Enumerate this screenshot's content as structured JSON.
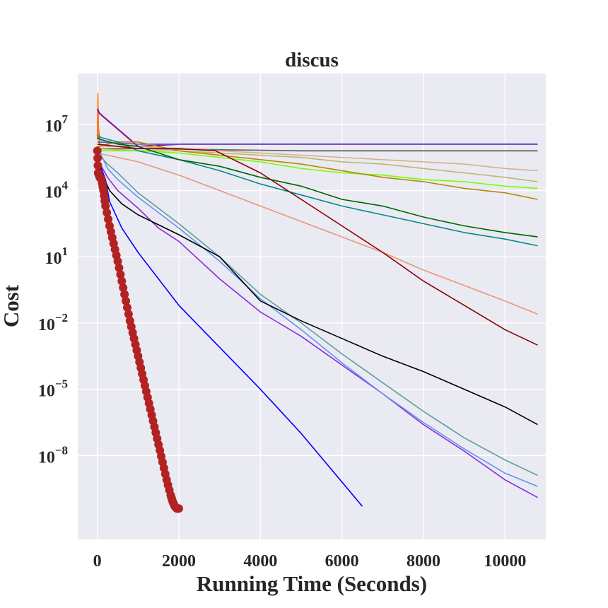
{
  "chart_data": {
    "type": "line",
    "title": "discus",
    "xlabel": "Running Time (Seconds)",
    "ylabel": "Cost",
    "xlim": [
      -480,
      11000
    ],
    "ylim_log10": [
      -11.8,
      9.3
    ],
    "y_scale": "log",
    "grid": true,
    "x_ticks": [
      {
        "value": 0,
        "label": "0"
      },
      {
        "value": 2000,
        "label": "2000"
      },
      {
        "value": 4000,
        "label": "4000"
      },
      {
        "value": 6000,
        "label": "6000"
      },
      {
        "value": 8000,
        "label": "8000"
      },
      {
        "value": 10000,
        "label": "10000"
      }
    ],
    "y_ticks": [
      {
        "exp": 7,
        "base": "10",
        "sup": "7"
      },
      {
        "exp": 4,
        "base": "10",
        "sup": "4"
      },
      {
        "exp": 1,
        "base": "10",
        "sup": "1"
      },
      {
        "exp": -2,
        "base": "10",
        "sup": "−2"
      },
      {
        "exp": -5,
        "base": "10",
        "sup": "−5"
      },
      {
        "exp": -8,
        "base": "10",
        "sup": "−8"
      }
    ],
    "series": [
      {
        "name": "dark-red-fast",
        "color": "#b22222",
        "width": 1.5,
        "markers": true,
        "x": [
          0,
          20,
          60,
          100,
          150,
          200,
          300,
          400,
          500,
          600,
          700,
          800,
          900,
          1000,
          1100,
          1200,
          1300,
          1400,
          1500,
          1600,
          1700,
          1800,
          1850,
          1900,
          1950,
          2000
        ],
        "y_log10": [
          5.8,
          4.8,
          4.6,
          4.5,
          4.0,
          3.3,
          2.4,
          1.6,
          0.8,
          -0.1,
          -1.0,
          -1.9,
          -2.7,
          -3.5,
          -4.3,
          -5.1,
          -5.9,
          -6.7,
          -7.5,
          -8.3,
          -9.1,
          -9.8,
          -10.1,
          -10.3,
          -10.4,
          -10.4
        ]
      },
      {
        "name": "blue",
        "color": "#0000ff",
        "width": 1.6,
        "markers": false,
        "x": [
          0,
          100,
          200,
          300,
          600,
          1000,
          2000,
          3000,
          4000,
          5000,
          6000,
          6500
        ],
        "y_log10": [
          5.4,
          5.0,
          4.5,
          3.5,
          2.3,
          1.2,
          -1.2,
          -3.1,
          -5.0,
          -7.0,
          -9.2,
          -10.3
        ]
      },
      {
        "name": "black",
        "color": "#000000",
        "width": 1.6,
        "markers": false,
        "x": [
          0,
          100,
          200,
          300,
          600,
          1000,
          2000,
          3000,
          4000,
          5000,
          6000,
          7000,
          8000,
          9000,
          10000,
          10800
        ],
        "y_log10": [
          5.3,
          4.9,
          4.4,
          4.0,
          3.4,
          2.9,
          2.0,
          1.0,
          -1.0,
          -1.9,
          -2.7,
          -3.5,
          -4.2,
          -5.0,
          -5.8,
          -6.6
        ]
      },
      {
        "name": "cadet-blue",
        "color": "#5f9ea0",
        "width": 1.6,
        "markers": false,
        "x": [
          0,
          100,
          250,
          500,
          1000,
          2000,
          3000,
          4000,
          5000,
          6000,
          7000,
          8000,
          9000,
          10000,
          10800
        ],
        "y_log10": [
          5.7,
          5.5,
          5.2,
          4.8,
          3.9,
          2.5,
          1.0,
          -0.7,
          -2.0,
          -3.4,
          -4.7,
          -6.0,
          -7.2,
          -8.2,
          -8.9
        ]
      },
      {
        "name": "cornflower-blue",
        "color": "#6495ed",
        "width": 1.6,
        "markers": false,
        "x": [
          0,
          100,
          250,
          500,
          1000,
          2000,
          3000,
          4000,
          5000,
          6000,
          7000,
          8000,
          9000,
          10000,
          10800
        ],
        "y_log10": [
          5.8,
          5.6,
          5.0,
          4.5,
          3.7,
          2.3,
          0.8,
          -0.9,
          -2.3,
          -3.8,
          -5.2,
          -6.5,
          -7.7,
          -8.8,
          -9.4
        ]
      },
      {
        "name": "blue-violet",
        "color": "#8a2be2",
        "width": 1.6,
        "markers": false,
        "x": [
          0,
          100,
          250,
          500,
          1000,
          1500,
          2000,
          3000,
          4000,
          5000,
          6000,
          7000,
          8000,
          9000,
          10000,
          10800
        ],
        "y_log10": [
          5.4,
          5.1,
          4.6,
          4.0,
          3.2,
          2.3,
          1.7,
          0.0,
          -1.5,
          -2.6,
          -3.9,
          -5.2,
          -6.6,
          -7.8,
          -9.1,
          -9.9
        ]
      },
      {
        "name": "dark-red",
        "color": "#8b0000",
        "width": 1.6,
        "markers": false,
        "x": [
          0,
          500,
          1000,
          2000,
          2900,
          4000,
          5000,
          6000,
          7000,
          8000,
          9000,
          10000,
          10800
        ],
        "y_log10": [
          6.1,
          6.0,
          5.9,
          5.9,
          5.8,
          4.8,
          3.6,
          2.4,
          1.2,
          -0.1,
          -1.2,
          -2.3,
          -3.0
        ]
      },
      {
        "name": "dark-salmon",
        "color": "#e9967a",
        "width": 1.6,
        "markers": false,
        "x": [
          0,
          1000,
          2000,
          3000,
          4000,
          5000,
          6000,
          7000,
          8000,
          9000,
          10000,
          10800
        ],
        "y_log10": [
          5.7,
          5.3,
          4.7,
          4.0,
          3.3,
          2.6,
          1.9,
          1.2,
          0.4,
          -0.3,
          -1.0,
          -1.6
        ]
      },
      {
        "name": "dark-green",
        "color": "#006400",
        "width": 1.6,
        "markers": false,
        "x": [
          0,
          100,
          500,
          1000,
          2000,
          3000,
          4000,
          5000,
          6000,
          7000,
          8000,
          9000,
          10000,
          10800
        ],
        "y_log10": [
          6.4,
          6.3,
          6.1,
          6.0,
          5.4,
          5.1,
          4.6,
          4.2,
          3.6,
          3.3,
          2.8,
          2.4,
          2.1,
          1.9
        ]
      },
      {
        "name": "dark-cyan",
        "color": "#008b8b",
        "width": 1.6,
        "markers": false,
        "x": [
          0,
          100,
          500,
          1000,
          2000,
          3000,
          4000,
          5000,
          6000,
          7000,
          8000,
          9000,
          10000,
          10800
        ],
        "y_log10": [
          6.5,
          6.4,
          6.2,
          5.8,
          5.4,
          4.9,
          4.3,
          3.8,
          3.3,
          2.9,
          2.5,
          2.1,
          1.8,
          1.5
        ]
      },
      {
        "name": "dark-goldenrod",
        "color": "#b8860b",
        "width": 1.6,
        "markers": false,
        "x": [
          0,
          500,
          1000,
          1500,
          2000,
          3000,
          4000,
          5000,
          6000,
          7000,
          8000,
          9000,
          10000,
          10800
        ],
        "y_log10": [
          6.0,
          6.2,
          6.2,
          6.0,
          5.8,
          5.6,
          5.4,
          5.2,
          4.9,
          4.6,
          4.4,
          4.1,
          3.9,
          3.6
        ]
      },
      {
        "name": "lawn-green",
        "color": "#7cfc00",
        "width": 1.6,
        "markers": false,
        "x": [
          0,
          1000,
          2000,
          3000,
          4000,
          5000,
          6000,
          7000,
          8000,
          9000,
          10000,
          10800
        ],
        "y_log10": [
          5.8,
          5.8,
          5.7,
          5.5,
          5.3,
          5.0,
          4.8,
          4.7,
          4.5,
          4.4,
          4.2,
          4.1
        ]
      },
      {
        "name": "tan",
        "color": "#d2b48c",
        "width": 1.6,
        "markers": false,
        "x": [
          0,
          1000,
          2000,
          3000,
          4000,
          5000,
          6000,
          7000,
          8000,
          9000,
          10000,
          10800
        ],
        "y_log10": [
          6.0,
          6.0,
          5.9,
          5.8,
          5.7,
          5.6,
          5.5,
          5.4,
          5.3,
          5.2,
          5.0,
          4.9
        ]
      },
      {
        "name": "dark-khaki",
        "color": "#bdb76b",
        "width": 1.6,
        "markers": false,
        "x": [
          0,
          1000,
          2000,
          3000,
          4000,
          5000,
          6000,
          7000,
          8000,
          9000,
          10000,
          10800
        ],
        "y_log10": [
          5.9,
          5.8,
          5.8,
          5.7,
          5.6,
          5.5,
          5.3,
          5.2,
          5.0,
          4.8,
          4.6,
          4.4
        ]
      },
      {
        "name": "dim-gray",
        "color": "#696969",
        "width": 1.8,
        "markers": false,
        "x": [
          0,
          1000,
          3000,
          5000,
          7000,
          9000,
          10800
        ],
        "y_log10": [
          5.9,
          5.9,
          5.85,
          5.8,
          5.8,
          5.8,
          5.8
        ]
      },
      {
        "name": "slate-blue",
        "color": "#6a5acd",
        "width": 1.8,
        "markers": false,
        "x": [
          0,
          1000,
          3000,
          5000,
          7000,
          9000,
          10800
        ],
        "y_log10": [
          6.2,
          6.1,
          6.1,
          6.1,
          6.1,
          6.1,
          6.1
        ]
      },
      {
        "name": "purple",
        "color": "#8b008b",
        "width": 2.0,
        "markers": false,
        "x": [
          0,
          50,
          1000,
          2000,
          4000,
          6000,
          8000,
          10000,
          10800
        ],
        "y_log10": [
          7.7,
          7.5,
          6.0,
          6.1,
          6.1,
          6.1,
          6.1,
          6.1,
          6.1
        ]
      },
      {
        "name": "orange-spike",
        "color": "#ff7f0e",
        "width": 1.6,
        "markers": false,
        "x": [
          0,
          15,
          30,
          50
        ],
        "y_log10": [
          6.3,
          8.4,
          6.5,
          6.1
        ]
      },
      {
        "name": "magenta-spike",
        "color": "#c71585",
        "width": 1.6,
        "markers": false,
        "x": [
          0,
          15,
          30,
          60
        ],
        "y_log10": [
          6.5,
          8.1,
          6.8,
          6.1
        ]
      }
    ]
  }
}
